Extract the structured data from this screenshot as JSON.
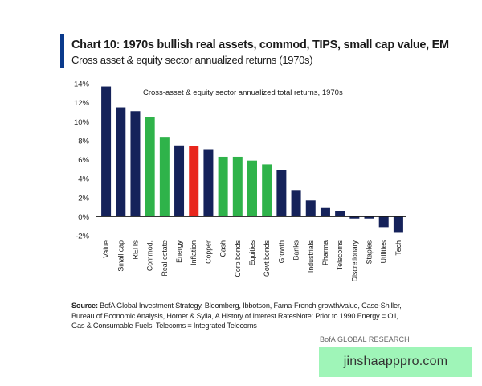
{
  "header": {
    "title": "Chart 10: 1970s bullish real assets, commod, TIPS, small cap value, EM",
    "subtitle": "Cross asset & equity sector annualized returns (1970s)"
  },
  "colors": {
    "accent": "#0a3a8c",
    "navy": "#15225a",
    "green": "#2fb34a",
    "red": "#e8261c"
  },
  "chart_data": {
    "type": "bar",
    "title": "Cross-asset & equity sector annualized total returns, 1970s",
    "xlabel": "",
    "ylabel": "",
    "ylim": [
      -2,
      14
    ],
    "y_ticks": [
      "14%",
      "12%",
      "10%",
      "8%",
      "6%",
      "4%",
      "2%",
      "0%",
      "-2%"
    ],
    "y_tick_values": [
      14,
      12,
      10,
      8,
      6,
      4,
      2,
      0,
      -2
    ],
    "grid": false,
    "categories": [
      "Value",
      "Small cap",
      "REITs",
      "Commod.",
      "Real estate",
      "Energy",
      "Inflation",
      "Copper",
      "Cash",
      "Corp bonds",
      "Equities",
      "Govt bonds",
      "Growth",
      "Banks",
      "Industrials",
      "Pharma",
      "Telecoms",
      "Discretionary",
      "Staples",
      "Utilities",
      "Tech"
    ],
    "values": [
      13.7,
      11.5,
      11.1,
      10.5,
      8.4,
      7.5,
      7.4,
      7.1,
      6.3,
      6.3,
      5.9,
      5.5,
      4.9,
      2.8,
      1.7,
      0.9,
      0.6,
      -0.2,
      -0.2,
      -1.1,
      -1.7
    ],
    "bar_colors": [
      "navy",
      "navy",
      "navy",
      "green",
      "green",
      "navy",
      "red",
      "navy",
      "green",
      "green",
      "green",
      "green",
      "navy",
      "navy",
      "navy",
      "navy",
      "navy",
      "navy",
      "navy",
      "navy",
      "navy"
    ]
  },
  "footnote": {
    "source_label": "Source:",
    "source_text": " BofA Global Investment Strategy, Bloomberg, Ibbotson, Fama-French growth/value, Case-Shiller, Bureau of Economic Analysis, Homer & Sylla, A History of Interest RatesNote: Prior to 1990 Energy = Oil, Gas & Consumable Fuels; Telecoms = Integrated Telecoms"
  },
  "brand": "BofA GLOBAL RESEARCH",
  "watermark": "jinshaapppro.com"
}
